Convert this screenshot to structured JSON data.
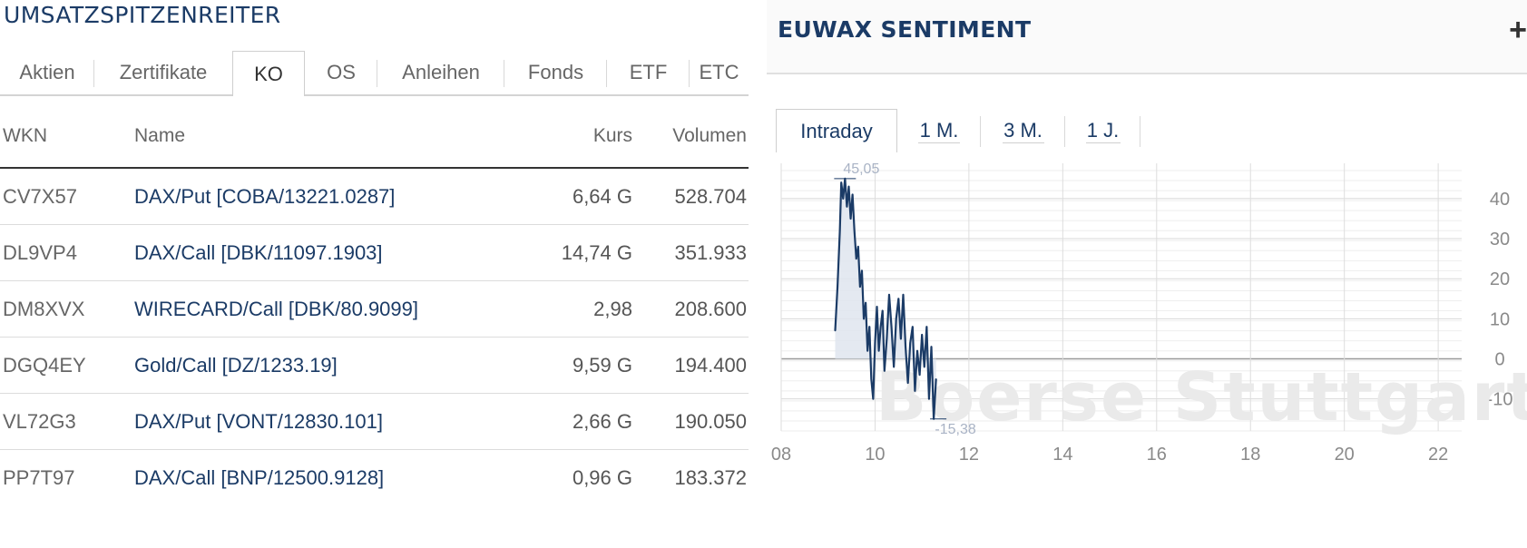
{
  "left_panel": {
    "title": "UMSATZSPITZENREITER",
    "tabs": [
      {
        "label": "Aktien",
        "active": false
      },
      {
        "label": "Zertifikate",
        "active": false
      },
      {
        "label": "KO",
        "active": true
      },
      {
        "label": "OS",
        "active": false
      },
      {
        "label": "Anleihen",
        "active": false
      },
      {
        "label": "Fonds",
        "active": false
      },
      {
        "label": "ETF",
        "active": false
      },
      {
        "label": "ETC",
        "active": false
      }
    ],
    "table": {
      "headers": {
        "wkn": "WKN",
        "name": "Name",
        "kurs": "Kurs",
        "volumen": "Volumen"
      },
      "rows": [
        {
          "wkn": "CV7X57",
          "name": "DAX/Put [COBA/13221.0287]",
          "kurs": "6,64 G",
          "volumen": "528.704"
        },
        {
          "wkn": "DL9VP4",
          "name": "DAX/Call [DBK/11097.1903]",
          "kurs": "14,74 G",
          "volumen": "351.933"
        },
        {
          "wkn": "DM8XVX",
          "name": "WIRECARD/Call [DBK/80.9099]",
          "kurs": "2,98",
          "volumen": "208.600"
        },
        {
          "wkn": "DGQ4EY",
          "name": "Gold/Call [DZ/1233.19]",
          "kurs": "9,59 G",
          "volumen": "194.400"
        },
        {
          "wkn": "VL72G3",
          "name": "DAX/Put [VONT/12830.101]",
          "kurs": "2,66 G",
          "volumen": "190.050"
        },
        {
          "wkn": "PP7T97",
          "name": "DAX/Call [BNP/12500.9128]",
          "kurs": "0,96 G",
          "volumen": "183.372"
        }
      ]
    }
  },
  "right_panel": {
    "title": "EUWAX SENTIMENT",
    "expand_icon": "plus-icon",
    "period_tabs": [
      {
        "label": "Intraday",
        "active": true
      },
      {
        "label": "1 M.",
        "active": false
      },
      {
        "label": "3 M.",
        "active": false
      },
      {
        "label": "1 J.",
        "active": false
      }
    ],
    "watermark": "Boerse Stuttgart"
  },
  "chart_data": {
    "type": "line",
    "x_tick_labels": [
      "08",
      "10",
      "12",
      "14",
      "16",
      "18",
      "20",
      "22"
    ],
    "y_tick_labels": [
      "40",
      "30",
      "20",
      "10",
      "0",
      "-10"
    ],
    "xlim": [
      8,
      22.5
    ],
    "ylim": [
      -18,
      47
    ],
    "max_label": "45,05",
    "min_label": "-15,38",
    "grid": true,
    "colors": {
      "line": "#1b3b66",
      "fill": "#dfe5ee",
      "grid": "#e0e0e0",
      "zero_line": "#999999"
    },
    "series": [
      {
        "x": [
          9.15,
          9.2,
          9.25,
          9.28,
          9.32,
          9.36,
          9.4,
          9.44,
          9.48,
          9.52,
          9.56,
          9.6,
          9.64,
          9.68,
          9.72,
          9.76,
          9.8,
          9.84,
          9.88,
          9.92,
          9.96,
          10.0,
          10.04,
          10.08,
          10.12,
          10.16,
          10.2,
          10.25,
          10.3,
          10.35,
          10.4,
          10.45,
          10.5,
          10.55,
          10.6,
          10.65,
          10.7,
          10.75,
          10.8,
          10.85,
          10.9,
          10.95,
          11.0,
          11.05,
          11.1,
          11.15,
          11.2,
          11.25,
          11.3
        ],
        "y": [
          7,
          18,
          32,
          44,
          40,
          45,
          38,
          43,
          35,
          41,
          32,
          25,
          28,
          18,
          22,
          10,
          14,
          2,
          8,
          -5,
          -10,
          4,
          13,
          2,
          8,
          12,
          -3,
          5,
          16,
          8,
          -2,
          10,
          15,
          5,
          16,
          3,
          -6,
          4,
          8,
          -8,
          2,
          -4,
          6,
          -2,
          8,
          -10,
          3,
          -15,
          -5
        ]
      }
    ]
  }
}
